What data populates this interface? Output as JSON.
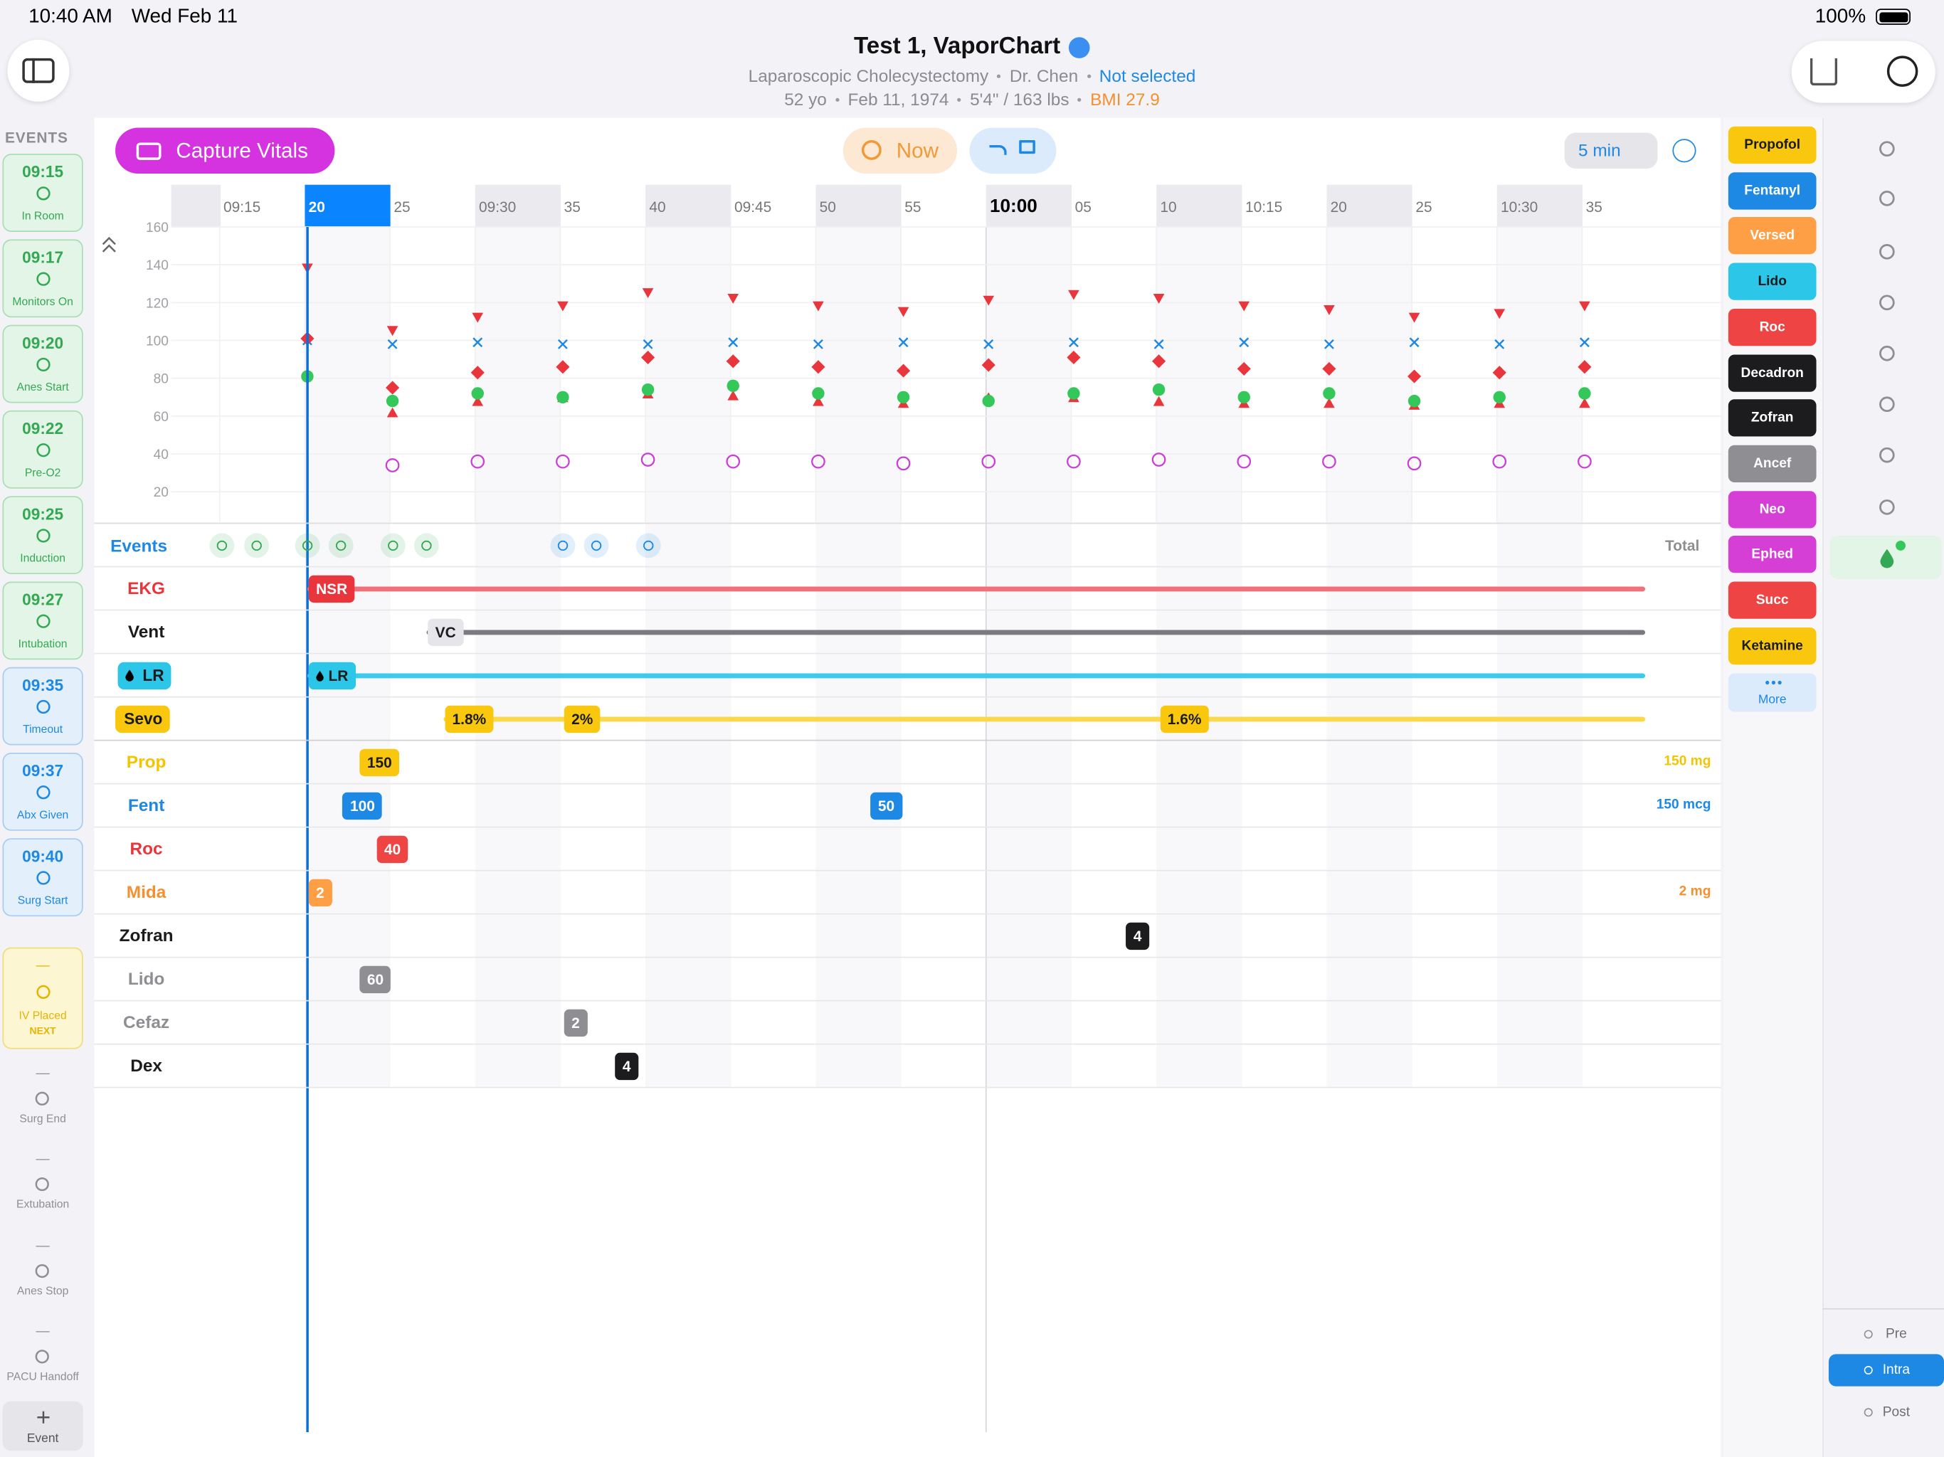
{
  "status_bar": {
    "time": "10:40 AM",
    "date": "Wed Feb 11",
    "battery": "100%"
  },
  "header": {
    "title": "Test 1, VaporChart",
    "procedure": "Laparoscopic Cholecystectomy",
    "surgeon": "Dr. Chen",
    "selection": "Not selected",
    "age": "52 yo",
    "dob": "Feb 11, 1974",
    "height_weight": "5'4\" / 163 lbs",
    "bmi": "BMI 27.9"
  },
  "toolbar": {
    "capture": "Capture Vitals",
    "now": "Now",
    "interval": "5 min"
  },
  "events_sidebar": {
    "title": "EVENTS",
    "done": [
      {
        "time": "09:15",
        "label": "In Room",
        "color": "#34a853"
      },
      {
        "time": "09:17",
        "label": "Monitors On",
        "color": "#34a853"
      },
      {
        "time": "09:20",
        "label": "Anes Start",
        "color": "#34a853"
      },
      {
        "time": "09:22",
        "label": "Pre-O2",
        "color": "#34a853"
      },
      {
        "time": "09:25",
        "label": "Induction",
        "color": "#34a853"
      },
      {
        "time": "09:27",
        "label": "Intubation",
        "color": "#34a853"
      },
      {
        "time": "09:35",
        "label": "Timeout",
        "color": "#1e88e5"
      },
      {
        "time": "09:37",
        "label": "Abx Given",
        "color": "#1e88e5"
      },
      {
        "time": "09:40",
        "label": "Surg Start",
        "color": "#1e88e5"
      }
    ],
    "next": {
      "time": "—",
      "label": "IV Placed",
      "tag": "NEXT"
    },
    "pending": [
      {
        "time": "—",
        "label": "Surg End"
      },
      {
        "time": "—",
        "label": "Extubation"
      },
      {
        "time": "—",
        "label": "Anes Stop"
      },
      {
        "time": "—",
        "label": "PACU Handoff"
      }
    ],
    "add": "Event"
  },
  "chart_data": {
    "type": "scatter",
    "xlim": [
      "09:12",
      "10:43"
    ],
    "xticks": [
      "09:15",
      {
        "value": "09:20",
        "label": "20"
      },
      {
        "value": "09:25",
        "label": "25"
      },
      "09:30",
      {
        "value": "09:35",
        "label": "35"
      },
      {
        "value": "09:40",
        "label": "40"
      },
      "09:45",
      {
        "value": "09:50",
        "label": "50"
      },
      {
        "value": "09:55",
        "label": "55"
      },
      "10:00",
      {
        "value": "10:05",
        "label": "05"
      },
      {
        "value": "10:10",
        "label": "10"
      },
      "10:15",
      {
        "value": "10:20",
        "label": "20"
      },
      {
        "value": "10:25",
        "label": "25"
      },
      "10:30",
      {
        "value": "10:35",
        "label": "35"
      }
    ],
    "ylim": [
      4,
      160
    ],
    "yticks": [
      20,
      40,
      60,
      80,
      100,
      120,
      140,
      160
    ],
    "x": [
      "09:20",
      "09:25",
      "09:30",
      "09:35",
      "09:40",
      "09:45",
      "09:50",
      "09:55",
      "10:00",
      "10:05",
      "10:10",
      "10:15",
      "10:20",
      "10:25",
      "10:30",
      "10:35"
    ],
    "series": [
      {
        "color": "#e8363c",
        "marker": "triangle-down",
        "values": [
          138,
          105,
          112,
          118,
          125,
          122,
          118,
          115,
          121,
          124,
          122,
          118,
          116,
          112,
          114,
          118
        ]
      },
      {
        "color": "#e8363c",
        "marker": "triangle-up",
        "values": [
          null,
          62,
          68,
          70,
          72,
          71,
          68,
          67,
          70,
          70,
          68,
          67,
          67,
          66,
          67,
          67
        ]
      },
      {
        "color": "#34c759",
        "marker": "dot",
        "values": [
          81,
          68,
          72,
          70,
          74,
          76,
          72,
          70,
          68,
          72,
          74,
          70,
          72,
          68,
          70,
          72
        ]
      },
      {
        "color": "#1e88e5",
        "marker": "cross",
        "values": [
          100,
          98,
          99,
          98,
          98,
          99,
          98,
          99,
          98,
          99,
          98,
          99,
          98,
          99,
          98,
          99
        ]
      },
      {
        "color": "#e8363c",
        "marker": "diamond",
        "values": [
          101,
          75,
          83,
          86,
          91,
          89,
          86,
          84,
          87,
          91,
          89,
          85,
          85,
          81,
          83,
          86
        ]
      },
      {
        "color": "#c83fd6",
        "marker": "ring",
        "values": [
          null,
          34,
          36,
          36,
          37,
          36,
          36,
          35,
          36,
          36,
          37,
          36,
          36,
          35,
          36,
          36
        ]
      }
    ]
  },
  "timeline": {
    "events_label": "Events",
    "total_label": "Total",
    "rows": [
      {
        "label": "EKG",
        "label_color": "#e8363c",
        "line_color": "#f0717a",
        "badge_color": "#e8363c",
        "badge_text_color": "#ffffff",
        "badges": [
          {
            "text": "NSR",
            "time": "09:20"
          }
        ]
      },
      {
        "label": "Vent",
        "label_color": "#1c1c1e",
        "line_color": "#7a7a80",
        "badge_color": "#e5e5ea",
        "badge_text_color": "#1c1c1e",
        "badges": [
          {
            "text": "VC",
            "time": "09:27"
          }
        ]
      },
      {
        "label": "LR",
        "label_color": "#1c1c1e",
        "label_bg": "#2bc6e8",
        "icon": "drop",
        "line_color": "#3ccbea",
        "badge_color": "#2bc6e8",
        "badge_text_color": "#1c1c1e",
        "badges": [
          {
            "text": "LR",
            "time": "09:20"
          }
        ]
      },
      {
        "label": "Sevo",
        "label_color": "#1c1c1e",
        "label_bg": "#f9c80e",
        "line_color": "#f9d84a",
        "badge_color": "#f9c80e",
        "badge_text_color": "#1c1c1e",
        "badges": [
          {
            "text": "1.8%",
            "time": "09:28"
          },
          {
            "text": "2%",
            "time": "09:35"
          },
          {
            "text": "1.6%",
            "time": "10:10"
          }
        ]
      },
      {
        "label": "Prop",
        "label_color": "#f5c400",
        "badge_color": "#f9c80e",
        "badge_text_color": "#1c1c1e",
        "badges": [
          {
            "text": "150",
            "time": "09:23"
          }
        ],
        "total": "150 mg",
        "total_color": "#f5c400"
      },
      {
        "label": "Fent",
        "label_color": "#1e88e5",
        "badge_color": "#1e88e5",
        "badge_text_color": "#ffffff",
        "badges": [
          {
            "text": "100",
            "time": "09:22"
          },
          {
            "text": "50",
            "time": "09:53"
          }
        ],
        "total": "150 mcg",
        "total_color": "#1e88e5"
      },
      {
        "label": "Roc",
        "label_color": "#e8363c",
        "badge_color": "#ef4444",
        "badge_text_color": "#ffffff",
        "badges": [
          {
            "text": "40",
            "time": "09:24"
          }
        ]
      },
      {
        "label": "Mida",
        "label_color": "#f39131",
        "badge_color": "#ff9f45",
        "badge_text_color": "#ffffff",
        "badges": [
          {
            "text": "2",
            "time": "09:20"
          }
        ],
        "total": "2 mg",
        "total_color": "#f39131"
      },
      {
        "label": "Zofran",
        "label_color": "#1c1c1e",
        "badge_color": "#1c1c1e",
        "badge_text_color": "#ffffff",
        "badges": [
          {
            "text": "4",
            "time": "10:08"
          }
        ]
      },
      {
        "label": "Lido",
        "label_color": "#8e8e93",
        "badge_color": "#8e8e93",
        "badge_text_color": "#ffffff",
        "badges": [
          {
            "text": "60",
            "time": "09:23"
          }
        ]
      },
      {
        "label": "Cefaz",
        "label_color": "#8e8e93",
        "badge_color": "#8e8e93",
        "badge_text_color": "#ffffff",
        "badges": [
          {
            "text": "2",
            "time": "09:35"
          }
        ]
      },
      {
        "label": "Dex",
        "label_color": "#1c1c1e",
        "badge_color": "#1c1c1e",
        "badge_text_color": "#ffffff",
        "badges": [
          {
            "text": "4",
            "time": "09:38"
          }
        ]
      }
    ]
  },
  "drugs": {
    "items": [
      {
        "name": "Propofol",
        "color": "#f9c80e",
        "text_color": "#1c1c1e"
      },
      {
        "name": "Fentanyl",
        "color": "#1e88e5",
        "text_color": "#ffffff"
      },
      {
        "name": "Versed",
        "color": "#ff9f45",
        "text_color": "#ffffff"
      },
      {
        "name": "Lido",
        "color": "#2bc6e8",
        "text_color": "#1c1c1e"
      },
      {
        "name": "Roc",
        "color": "#ef4444",
        "text_color": "#ffffff"
      },
      {
        "name": "Decadron",
        "color": "#1c1c1e",
        "text_color": "#ffffff"
      },
      {
        "name": "Zofran",
        "color": "#1c1c1e",
        "text_color": "#ffffff"
      },
      {
        "name": "Ancef",
        "color": "#8e8e93",
        "text_color": "#ffffff"
      },
      {
        "name": "Neo",
        "color": "#d63fd6",
        "text_color": "#ffffff"
      },
      {
        "name": "Ephed",
        "color": "#d63fd6",
        "text_color": "#ffffff"
      },
      {
        "name": "Succ",
        "color": "#ef4444",
        "text_color": "#ffffff"
      },
      {
        "name": "Ketamine",
        "color": "#f9c80e",
        "text_color": "#1c1c1e"
      }
    ],
    "more": "More"
  },
  "tabs": {
    "items": [
      "Pre",
      "Intra",
      "Post"
    ],
    "active": "Intra"
  }
}
